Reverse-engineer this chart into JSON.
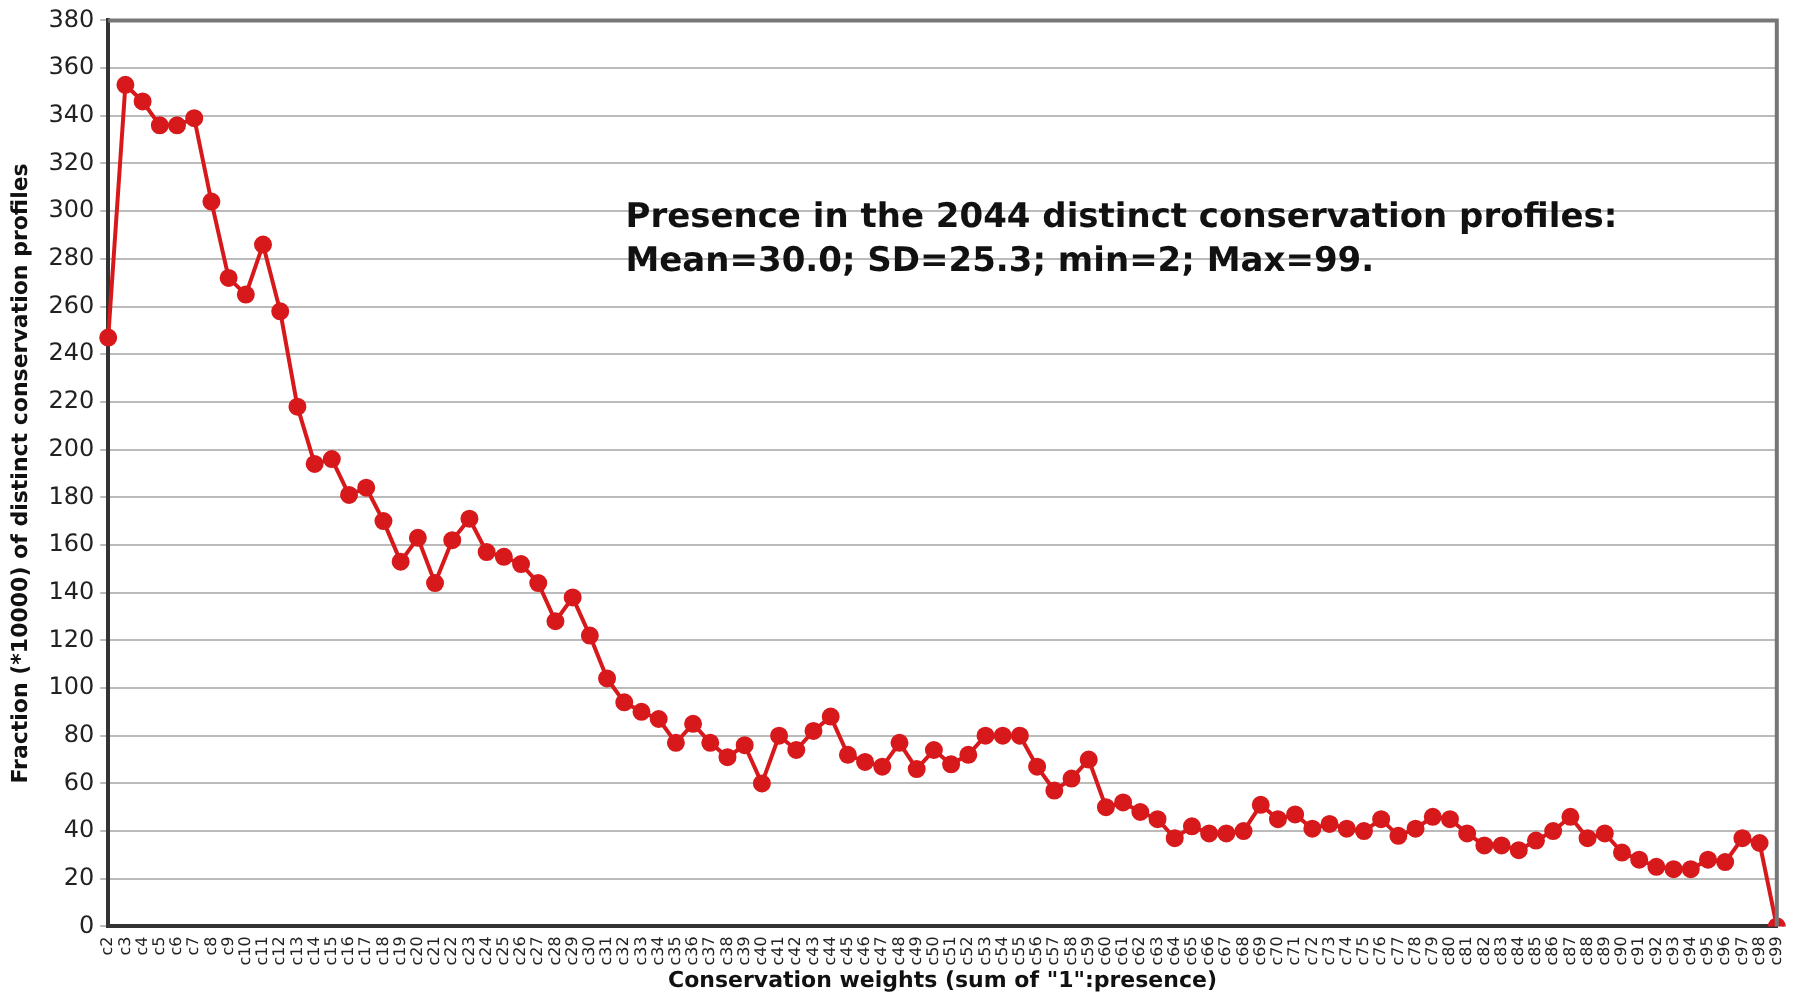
{
  "chart_data": {
    "type": "line",
    "xlabel": "Conservation weights (sum of \"1\":presence)",
    "ylabel": "Fraction (*10000) of distinct conservation profiles",
    "annotations": [
      "Presence in the 2044 distinct conservation profiles:\nMean=30.0; SD=25.3; min=2; Max=99."
    ],
    "categories": [
      "c2",
      "c3",
      "c4",
      "c5",
      "c6",
      "c7",
      "c8",
      "c9",
      "c10",
      "c11",
      "c12",
      "c13",
      "c14",
      "c15",
      "c16",
      "c17",
      "c18",
      "c19",
      "c20",
      "c21",
      "c22",
      "c23",
      "c24",
      "c25",
      "c26",
      "c27",
      "c28",
      "c29",
      "c30",
      "c31",
      "c32",
      "c33",
      "c34",
      "c35",
      "c36",
      "c37",
      "c38",
      "c39",
      "c40",
      "c41",
      "c42",
      "c43",
      "c44",
      "c45",
      "c46",
      "c47",
      "c48",
      "c49",
      "c50",
      "c51",
      "c52",
      "c53",
      "c54",
      "c55",
      "c56",
      "c57",
      "c58",
      "c59",
      "c60",
      "c61",
      "c62",
      "c63",
      "c64",
      "c65",
      "c66",
      "c67",
      "c68",
      "c69",
      "c70",
      "c71",
      "c72",
      "c73",
      "c74",
      "c75",
      "c76",
      "c77",
      "c78",
      "c79",
      "c80",
      "c81",
      "c82",
      "c83",
      "c84",
      "c85",
      "c86",
      "c87",
      "c88",
      "c89",
      "c90",
      "c91",
      "c92",
      "c93",
      "c94",
      "c95",
      "c96",
      "c97",
      "c98",
      "c99"
    ],
    "series": [
      {
        "color": "#d7191c",
        "values": [
          247,
          353,
          346,
          336,
          336,
          339,
          304,
          272,
          265,
          286,
          258,
          218,
          194,
          196,
          181,
          184,
          170,
          153,
          163,
          144,
          162,
          171,
          157,
          155,
          152,
          144,
          128,
          138,
          122,
          104,
          94,
          90,
          87,
          77,
          85,
          77,
          71,
          76,
          60,
          80,
          74,
          82,
          88,
          72,
          69,
          67,
          77,
          66,
          74,
          68,
          72,
          80,
          80,
          80,
          67,
          57,
          62,
          70,
          50,
          52,
          48,
          45,
          37,
          42,
          39,
          39,
          40,
          51,
          45,
          47,
          41,
          43,
          41,
          40,
          45,
          38,
          41,
          46,
          45,
          39,
          34,
          34,
          32,
          36,
          40,
          46,
          37,
          39,
          31,
          28,
          25,
          24,
          24,
          28,
          27,
          37,
          35,
          0
        ]
      }
    ],
    "ylim": [
      0,
      380
    ],
    "yticks": [
      0,
      20,
      40,
      60,
      80,
      100,
      120,
      140,
      160,
      180,
      200,
      220,
      240,
      260,
      280,
      300,
      320,
      340,
      360,
      380
    ],
    "grid": "y",
    "legend": false,
    "marker": "circle",
    "line_style": "solid"
  }
}
